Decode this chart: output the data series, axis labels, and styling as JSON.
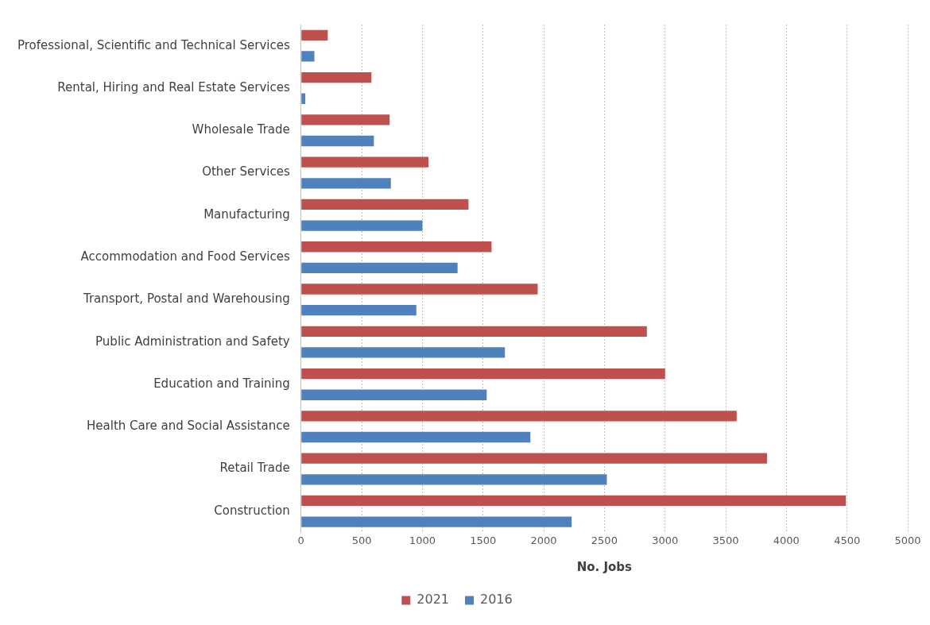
{
  "chart_data": {
    "type": "bar",
    "orientation": "horizontal",
    "xlabel": "No. Jobs",
    "categories": [
      "Professional, Scientific and Technical Services",
      "Rental, Hiring and Real Estate Services",
      "Wholesale Trade",
      "Other Services",
      "Manufacturing",
      "Accommodation and Food Services",
      "Transport, Postal and Warehousing",
      "Public Administration and Safety",
      "Education and Training",
      "Health Care and Social Assistance",
      "Retail Trade",
      "Construction"
    ],
    "series": [
      {
        "name": "2021",
        "color": "#c0504d",
        "values": [
          220,
          580,
          730,
          1050,
          1380,
          1570,
          1950,
          2850,
          3000,
          3590,
          3840,
          4490
        ]
      },
      {
        "name": "2016",
        "color": "#4f81bd",
        "values": [
          110,
          35,
          600,
          740,
          1000,
          1290,
          950,
          1680,
          1530,
          1890,
          2520,
          2230
        ]
      }
    ],
    "xlim": [
      0,
      5000
    ],
    "xticks": [
      0,
      500,
      1000,
      1500,
      2000,
      2500,
      3000,
      3500,
      4000,
      4500,
      5000
    ],
    "grid": "x",
    "legend": "bottom"
  }
}
